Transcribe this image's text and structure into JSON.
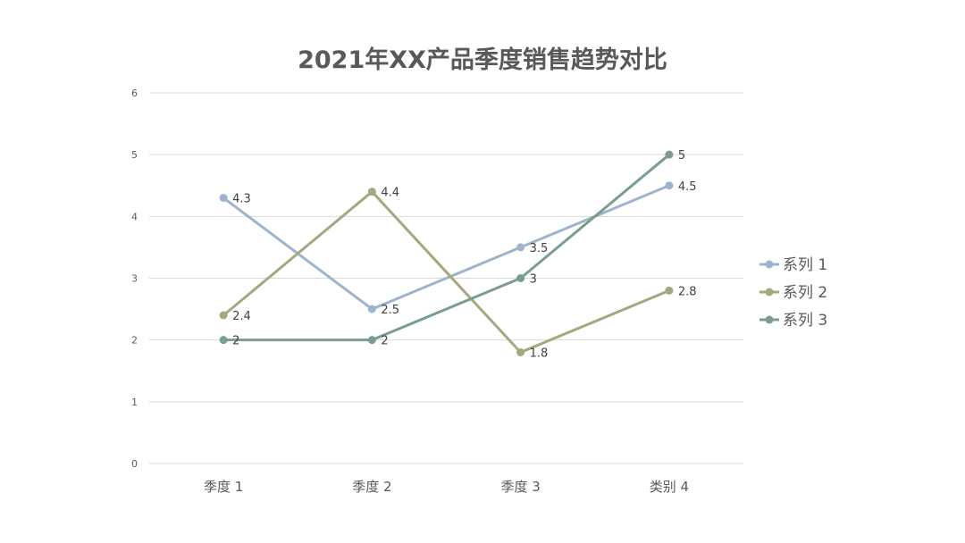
{
  "chart_data": {
    "type": "line",
    "title": "2021年XX产品季度销售趋势对比",
    "xlabel": "",
    "ylabel": "",
    "categories": [
      "季度 1",
      "季度 2",
      "季度 3",
      "类别 4"
    ],
    "ylim": [
      0,
      6
    ],
    "yticks": [
      "0",
      "1",
      "2",
      "3",
      "4",
      "5",
      "6"
    ],
    "grid": true,
    "legend": "right",
    "series": [
      {
        "name": "系列 1",
        "values": [
          4.3,
          2.5,
          3.5,
          4.5
        ],
        "labels": [
          "4.3",
          "2.5",
          "3.5",
          "4.5"
        ],
        "color": "#9db4cc"
      },
      {
        "name": "系列 2",
        "values": [
          2.4,
          4.4,
          1.8,
          2.8
        ],
        "labels": [
          "2.4",
          "4.4",
          "1.8",
          "2.8"
        ],
        "color": "#a5a77f"
      },
      {
        "name": "系列 3",
        "values": [
          2,
          2,
          3,
          5
        ],
        "labels": [
          "2",
          "2",
          "3",
          "5"
        ],
        "color": "#7a9e8e"
      }
    ]
  }
}
